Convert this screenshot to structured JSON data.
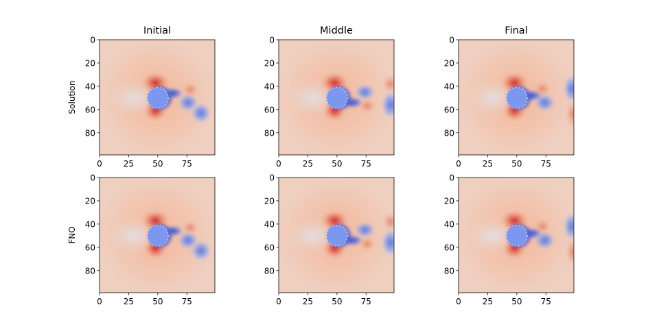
{
  "chart_data": {
    "type": "heatmap",
    "columns": [
      "Initial",
      "Middle",
      "Final"
    ],
    "rows": [
      "Solution",
      "FNO"
    ],
    "colormap": "coolwarm",
    "grid": false,
    "xlim": [
      0,
      99
    ],
    "ylim": [
      99,
      0
    ],
    "xticks": [
      0,
      25,
      50,
      75
    ],
    "yticks": [
      0,
      20,
      40,
      60,
      80
    ],
    "obstacle": {
      "center": [
        50,
        50
      ],
      "radius": 9,
      "value": "blue"
    },
    "panels": [
      {
        "row": "Solution",
        "column": "Initial",
        "wake": "short"
      },
      {
        "row": "Solution",
        "column": "Middle",
        "wake": "shed-right"
      },
      {
        "row": "Solution",
        "column": "Final",
        "wake": "shed-edge"
      },
      {
        "row": "FNO",
        "column": "Initial",
        "wake": "short"
      },
      {
        "row": "FNO",
        "column": "Middle",
        "wake": "shed-right"
      },
      {
        "row": "FNO",
        "column": "Final",
        "wake": "shed-edge"
      }
    ]
  }
}
